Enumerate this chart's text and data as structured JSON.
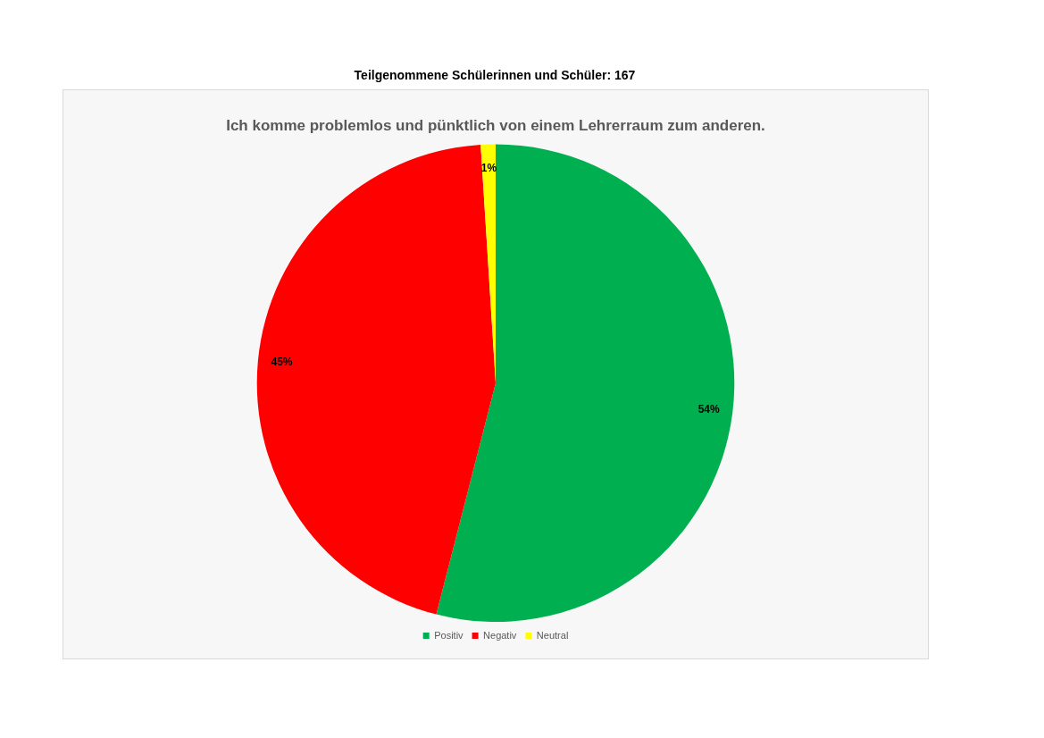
{
  "chart_data": {
    "type": "pie",
    "title": "Teilgenommene Schülerinnen und Schüler: 167",
    "subtitle": "Ich komme problemlos und pünktlich von einem Lehrerraum zum anderen.",
    "categories": [
      "Positiv",
      "Negativ",
      "Neutral"
    ],
    "values": [
      54,
      45,
      1
    ],
    "colors": [
      "#00b050",
      "#ff0000",
      "#ffff00"
    ],
    "value_labels": [
      "54%",
      "45%",
      "1%"
    ],
    "legend": "bottom"
  }
}
